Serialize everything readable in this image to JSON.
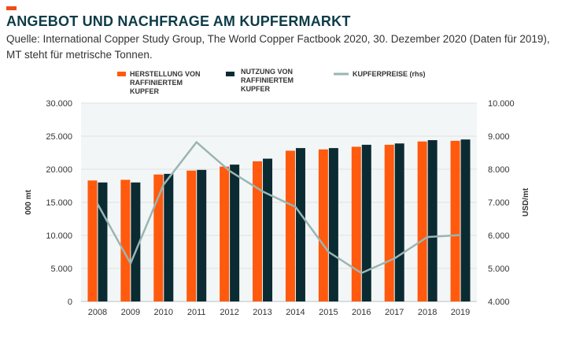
{
  "header": {
    "title": "ANGEBOT UND NACHFRAGE AM KUPFERMARKT",
    "subtitle": "Quelle: International Copper Study Group, The World Copper Factbook 2020, 30. Dezember 2020 (Daten für 2019), MT steht für metrische Tonnen."
  },
  "colors": {
    "accent": "#ee4d18",
    "title": "#0d3b48",
    "herstellung": "#ff5a0e",
    "nutzung": "#0b2b33",
    "preis": "#9ab5b3",
    "plot_bg": "#f3f6f6"
  },
  "chart_data": {
    "type": "bar",
    "categories": [
      "2008",
      "2009",
      "2010",
      "2011",
      "2012",
      "2013",
      "2014",
      "2015",
      "2016",
      "2017",
      "2018",
      "2019"
    ],
    "series": [
      {
        "name": "HERSTELLUNG VON RAFFINIERTEM KUPFER",
        "type": "bar",
        "axis": "left",
        "color": "#ff5a0e",
        "values": [
          18300,
          18400,
          19200,
          19800,
          20400,
          21200,
          22800,
          23000,
          23400,
          23700,
          24200,
          24300
        ]
      },
      {
        "name": "NUTZUNG VON RAFFINIERTEM KUPFER",
        "type": "bar",
        "axis": "left",
        "color": "#0b2b33",
        "values": [
          18000,
          18000,
          19300,
          19900,
          20700,
          21600,
          23200,
          23200,
          23700,
          23900,
          24400,
          24500
        ]
      },
      {
        "name": "KUPFERPREISE (rhs)",
        "type": "line",
        "axis": "right",
        "color": "#9ab5b3",
        "values": [
          6950,
          5150,
          7530,
          8820,
          7950,
          7330,
          6860,
          5500,
          4860,
          5300,
          5950,
          6010
        ]
      }
    ],
    "ylabel": "000 mt",
    "y2label": "USD/mt",
    "ylim": [
      0,
      30000
    ],
    "y2lim": [
      4000,
      10000
    ],
    "yticks": [
      "0",
      "5.000",
      "10.000",
      "15.000",
      "20.000",
      "25.000",
      "30.000"
    ],
    "y2ticks": [
      "4.000",
      "5.000",
      "6.000",
      "7.000",
      "8.000",
      "9.000",
      "10.000"
    ],
    "legend_position": "top",
    "grid": "horizontal"
  }
}
